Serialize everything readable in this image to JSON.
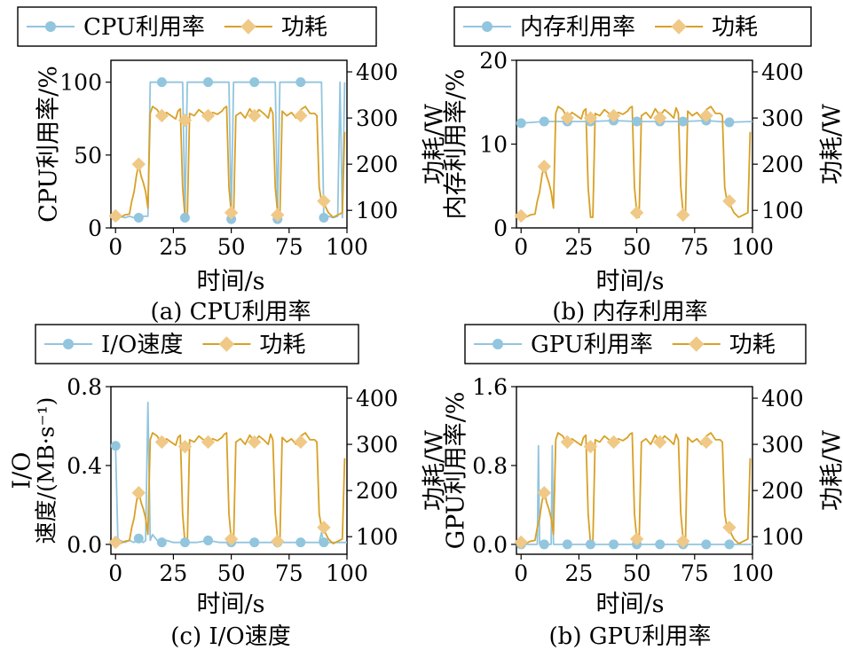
{
  "colors": {
    "metric": "#92c5de",
    "power": "#d9a025",
    "power_marker": "#f0c987"
  },
  "chart_data": [
    {
      "type": "line",
      "caption": "(a) CPU利用率",
      "legend": [
        "CPU利用率",
        "功耗"
      ],
      "xlabel": "时间/s",
      "ylabel": "CPU利用率/%",
      "y2label": "功耗/W",
      "xlim": [
        -2,
        100
      ],
      "xticks": [
        "0",
        "25",
        "50",
        "75",
        "100"
      ],
      "ylim": [
        0,
        115
      ],
      "yticks": [
        0,
        50,
        100
      ],
      "yticklabels": [
        "0",
        "50",
        "100"
      ],
      "y2lim": [
        62,
        425
      ],
      "y2ticks": [
        "100",
        "200",
        "300",
        "400"
      ],
      "series": [
        {
          "name": "CPU利用率",
          "axis": "left",
          "x": [
            0,
            2,
            4,
            6,
            8,
            10,
            12,
            14,
            15,
            16,
            18,
            20,
            22,
            24,
            26,
            28,
            29,
            30,
            31,
            32,
            34,
            36,
            38,
            40,
            42,
            44,
            46,
            48,
            49,
            50,
            51,
            52,
            54,
            56,
            58,
            60,
            62,
            64,
            66,
            68,
            69,
            70,
            71,
            72,
            74,
            76,
            78,
            80,
            82,
            84,
            86,
            88,
            89,
            90,
            92,
            94,
            96,
            97,
            98,
            99
          ],
          "y": [
            8,
            8,
            7,
            8,
            7,
            7,
            8,
            8,
            100,
            100,
            100,
            100,
            100,
            100,
            100,
            100,
            100,
            7,
            100,
            100,
            100,
            100,
            100,
            100,
            100,
            100,
            100,
            100,
            100,
            7,
            100,
            100,
            100,
            100,
            100,
            100,
            100,
            100,
            100,
            100,
            100,
            7,
            100,
            100,
            100,
            100,
            100,
            100,
            100,
            100,
            100,
            100,
            100,
            7,
            8,
            7,
            8,
            100,
            7,
            100
          ],
          "markers_x": [
            0,
            10,
            20,
            30,
            40,
            50,
            60,
            70,
            80,
            90
          ],
          "markers_y": [
            8,
            7,
            100,
            7,
            100,
            6,
            100,
            6,
            100,
            7
          ]
        },
        {
          "name": "功耗",
          "axis": "right",
          "x": [
            0,
            2,
            4,
            6,
            7,
            8,
            9,
            10,
            11,
            12,
            13,
            14,
            15,
            16,
            18,
            20,
            22,
            24,
            26,
            27,
            28,
            29,
            30,
            31,
            32,
            34,
            36,
            38,
            40,
            42,
            44,
            46,
            47,
            48,
            49,
            50,
            51,
            52,
            54,
            56,
            58,
            60,
            62,
            64,
            66,
            67,
            68,
            69,
            70,
            71,
            72,
            74,
            76,
            78,
            80,
            82,
            84,
            86,
            87,
            88,
            89,
            90,
            92,
            94,
            96,
            98,
            99
          ],
          "y": [
            88,
            85,
            90,
            92,
            120,
            140,
            175,
            200,
            175,
            160,
            140,
            105,
            310,
            325,
            318,
            300,
            312,
            305,
            298,
            315,
            320,
            150,
            85,
            85,
            310,
            305,
            318,
            310,
            300,
            312,
            308,
            315,
            322,
            325,
            150,
            95,
            85,
            305,
            312,
            300,
            320,
            305,
            318,
            310,
            300,
            322,
            310,
            150,
            95,
            85,
            315,
            305,
            312,
            300,
            318,
            325,
            310,
            310,
            305,
            150,
            120,
            115,
            95,
            85,
            90,
            95,
            270
          ],
          "markers_x": [
            0,
            10,
            20,
            30,
            40,
            50,
            60,
            70,
            80,
            90
          ],
          "markers_y": [
            88,
            200,
            305,
            295,
            305,
            95,
            305,
            90,
            305,
            120
          ]
        }
      ]
    },
    {
      "type": "line",
      "caption": "(b) 内存利用率",
      "legend": [
        "内存利用率",
        "功耗"
      ],
      "xlabel": "时间/s",
      "ylabel": "内存利用率/%",
      "y2label": "功耗/W",
      "xlim": [
        -2,
        100
      ],
      "xticks": [
        "0",
        "25",
        "50",
        "75",
        "100"
      ],
      "ylim": [
        0,
        20
      ],
      "yticks": [
        0,
        10,
        20
      ],
      "yticklabels": [
        "0",
        "10",
        "20"
      ],
      "y2lim": [
        62,
        425
      ],
      "y2ticks": [
        "100",
        "200",
        "300",
        "400"
      ],
      "series": [
        {
          "name": "内存利用率",
          "axis": "left",
          "x": [
            0,
            10,
            20,
            30,
            40,
            50,
            60,
            70,
            80,
            90,
            100
          ],
          "y": [
            12.5,
            12.7,
            12.7,
            12.7,
            12.8,
            12.7,
            12.7,
            12.7,
            12.8,
            12.6,
            12.7
          ],
          "markers_x": [
            0,
            10,
            20,
            30,
            40,
            50,
            60,
            70,
            80,
            90
          ],
          "markers_y": [
            12.5,
            12.7,
            12.7,
            12.7,
            12.8,
            12.7,
            12.7,
            12.7,
            12.8,
            12.6
          ]
        },
        {
          "name": "功耗",
          "axis": "right",
          "x": [
            0,
            2,
            4,
            6,
            7,
            8,
            9,
            10,
            11,
            12,
            13,
            14,
            15,
            16,
            18,
            20,
            22,
            24,
            26,
            27,
            28,
            29,
            30,
            31,
            32,
            34,
            36,
            38,
            40,
            42,
            44,
            46,
            47,
            48,
            49,
            50,
            51,
            52,
            54,
            56,
            58,
            60,
            62,
            64,
            66,
            67,
            68,
            69,
            70,
            71,
            72,
            74,
            76,
            78,
            80,
            82,
            84,
            86,
            87,
            88,
            89,
            90,
            92,
            94,
            96,
            98,
            99
          ],
          "y": [
            88,
            85,
            90,
            92,
            120,
            140,
            175,
            200,
            175,
            160,
            140,
            105,
            310,
            325,
            318,
            300,
            312,
            305,
            298,
            315,
            320,
            150,
            85,
            85,
            310,
            305,
            318,
            310,
            300,
            312,
            308,
            315,
            322,
            325,
            150,
            95,
            85,
            305,
            312,
            300,
            320,
            305,
            318,
            310,
            300,
            322,
            310,
            150,
            95,
            85,
            315,
            305,
            312,
            300,
            318,
            325,
            310,
            310,
            305,
            150,
            120,
            115,
            95,
            85,
            90,
            95,
            270
          ],
          "markers_x": [
            0,
            10,
            20,
            30,
            40,
            50,
            60,
            70,
            80,
            90
          ],
          "markers_y": [
            88,
            195,
            300,
            300,
            305,
            95,
            300,
            90,
            305,
            120
          ]
        }
      ]
    },
    {
      "type": "line",
      "caption": "(c) I/O速度",
      "legend": [
        "I/O速度",
        "功耗"
      ],
      "xlabel": "时间/s",
      "ylabel": "I/O",
      "ylabel2": "速度/(MB·s⁻¹)",
      "y2label": "功耗/W",
      "xlim": [
        -2,
        100
      ],
      "xticks": [
        "0",
        "25",
        "50",
        "75",
        "100"
      ],
      "ylim": [
        -0.05,
        0.8
      ],
      "yticks": [
        0,
        0.4,
        0.8
      ],
      "yticklabels": [
        "0.0",
        "0.4",
        "0.8"
      ],
      "y2lim": [
        62,
        425
      ],
      "y2ticks": [
        "100",
        "200",
        "300",
        "400"
      ],
      "series": [
        {
          "name": "I/O速度",
          "axis": "left",
          "x": [
            0,
            1,
            2,
            4,
            6,
            8,
            10,
            12,
            13,
            14,
            15,
            16,
            18,
            20,
            22,
            25,
            30,
            35,
            40,
            45,
            50,
            55,
            60,
            65,
            70,
            75,
            80,
            85,
            88,
            89,
            90,
            95,
            100
          ],
          "y": [
            0.5,
            0.03,
            0.02,
            0.01,
            0.02,
            0.01,
            0.03,
            0.01,
            0.02,
            0.72,
            0.02,
            0.05,
            0.02,
            0.01,
            0.02,
            0.01,
            0.01,
            0.01,
            0.02,
            0.01,
            0.01,
            0.01,
            0.01,
            0.01,
            0.01,
            0.01,
            0.01,
            0.01,
            0.01,
            0.06,
            0.01,
            0.01,
            0.01
          ],
          "markers_x": [
            0,
            10,
            20,
            30,
            40,
            50,
            60,
            70,
            80,
            90
          ],
          "markers_y": [
            0.5,
            0.03,
            0.01,
            0.01,
            0.02,
            0.01,
            0.01,
            0.01,
            0.01,
            0.01
          ]
        },
        {
          "name": "功耗",
          "axis": "right",
          "x": [
            0,
            2,
            4,
            6,
            7,
            8,
            9,
            10,
            11,
            12,
            13,
            14,
            15,
            16,
            18,
            20,
            22,
            24,
            26,
            27,
            28,
            29,
            30,
            31,
            32,
            34,
            36,
            38,
            40,
            42,
            44,
            46,
            47,
            48,
            49,
            50,
            51,
            52,
            54,
            56,
            58,
            60,
            62,
            64,
            66,
            67,
            68,
            69,
            70,
            71,
            72,
            74,
            76,
            78,
            80,
            82,
            84,
            86,
            87,
            88,
            89,
            90,
            92,
            94,
            96,
            98,
            99
          ],
          "y": [
            88,
            85,
            90,
            92,
            120,
            140,
            175,
            200,
            175,
            160,
            140,
            105,
            310,
            325,
            318,
            300,
            312,
            305,
            298,
            315,
            320,
            150,
            85,
            85,
            310,
            305,
            318,
            310,
            300,
            312,
            308,
            315,
            322,
            325,
            150,
            95,
            85,
            305,
            312,
            300,
            320,
            305,
            318,
            310,
            300,
            322,
            310,
            150,
            95,
            85,
            315,
            305,
            312,
            300,
            318,
            325,
            310,
            310,
            305,
            150,
            120,
            115,
            95,
            85,
            90,
            95,
            270
          ],
          "markers_x": [
            0,
            10,
            20,
            30,
            40,
            50,
            60,
            70,
            80,
            90
          ],
          "markers_y": [
            88,
            195,
            305,
            295,
            305,
            95,
            305,
            90,
            305,
            120
          ]
        }
      ]
    },
    {
      "type": "line",
      "caption": "(b) GPU利用率",
      "legend": [
        "GPU利用率",
        "功耗"
      ],
      "xlabel": "时间/s",
      "ylabel": "GPU利用率/%",
      "y2label": "功耗/W",
      "xlim": [
        -2,
        100
      ],
      "xticks": [
        "0",
        "25",
        "50",
        "75",
        "100"
      ],
      "ylim": [
        -0.1,
        1.6
      ],
      "yticks": [
        0,
        0.8,
        1.6
      ],
      "yticklabels": [
        "0.0",
        "0.8",
        "1.6"
      ],
      "y2lim": [
        62,
        425
      ],
      "y2ticks": [
        "100",
        "200",
        "300",
        "400"
      ],
      "series": [
        {
          "name": "GPU利用率",
          "axis": "left",
          "x": [
            0,
            7,
            7.5,
            8,
            8.5,
            9,
            13,
            13.5,
            14,
            14.5,
            15,
            20,
            30,
            40,
            50,
            60,
            70,
            80,
            90,
            100
          ],
          "y": [
            0,
            0,
            1.0,
            0,
            0,
            0,
            0,
            1.0,
            0,
            0,
            0,
            0,
            0,
            0,
            0,
            0,
            0,
            0,
            0,
            0
          ],
          "markers_x": [
            0,
            10,
            20,
            30,
            40,
            50,
            60,
            70,
            80,
            90
          ],
          "markers_y": [
            0,
            0,
            0,
            0,
            0,
            0,
            0,
            0,
            0,
            0
          ]
        },
        {
          "name": "功耗",
          "axis": "right",
          "x": [
            0,
            2,
            4,
            6,
            7,
            8,
            9,
            10,
            11,
            12,
            13,
            14,
            15,
            16,
            18,
            20,
            22,
            24,
            26,
            27,
            28,
            29,
            30,
            31,
            32,
            34,
            36,
            38,
            40,
            42,
            44,
            46,
            47,
            48,
            49,
            50,
            51,
            52,
            54,
            56,
            58,
            60,
            62,
            64,
            66,
            67,
            68,
            69,
            70,
            71,
            72,
            74,
            76,
            78,
            80,
            82,
            84,
            86,
            87,
            88,
            89,
            90,
            92,
            94,
            96,
            98,
            99
          ],
          "y": [
            88,
            85,
            90,
            92,
            120,
            140,
            175,
            200,
            175,
            160,
            140,
            105,
            310,
            325,
            318,
            300,
            312,
            305,
            298,
            315,
            320,
            150,
            85,
            85,
            310,
            305,
            318,
            310,
            300,
            312,
            308,
            315,
            322,
            325,
            150,
            95,
            85,
            305,
            312,
            300,
            320,
            305,
            318,
            310,
            300,
            322,
            310,
            150,
            95,
            85,
            315,
            305,
            312,
            300,
            318,
            325,
            310,
            310,
            305,
            150,
            120,
            115,
            95,
            85,
            90,
            95,
            270
          ],
          "markers_x": [
            0,
            10,
            20,
            30,
            40,
            50,
            60,
            70,
            80,
            90
          ],
          "markers_y": [
            88,
            195,
            305,
            295,
            305,
            95,
            305,
            90,
            305,
            120
          ]
        }
      ]
    }
  ]
}
